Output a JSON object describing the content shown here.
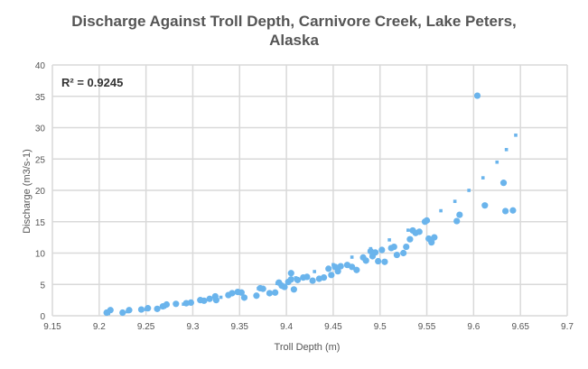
{
  "chart_data": {
    "type": "scatter",
    "title_lines": [
      "Discharge Against Troll Depth, Carnivore Creek, Lake Peters,",
      "Alaska"
    ],
    "xlabel": "Troll Depth (m)",
    "ylabel": "Discharge (m3/s-1)",
    "xlim": [
      9.15,
      9.7
    ],
    "ylim": [
      0,
      40
    ],
    "x_ticks": [
      "9.15",
      "9.2",
      "9.25",
      "9.3",
      "9.35",
      "9.4",
      "9.45",
      "9.5",
      "9.55",
      "9.6",
      "9.65",
      "9.7"
    ],
    "y_ticks": [
      "0",
      "5",
      "10",
      "15",
      "20",
      "25",
      "30",
      "35",
      "40"
    ],
    "grid": true,
    "annotation": "R² = 0.9245",
    "marker_color": "#6ab4ec",
    "trend_color": "#6ab4ec",
    "series": [
      {
        "points": [
          [
            9.208,
            0.5
          ],
          [
            9.212,
            0.9
          ],
          [
            9.225,
            0.5
          ],
          [
            9.232,
            0.9
          ],
          [
            9.245,
            1.0
          ],
          [
            9.252,
            1.2
          ],
          [
            9.262,
            1.1
          ],
          [
            9.268,
            1.5
          ],
          [
            9.272,
            1.8
          ],
          [
            9.282,
            1.9
          ],
          [
            9.293,
            2.0
          ],
          [
            9.298,
            2.1
          ],
          [
            9.308,
            2.5
          ],
          [
            9.312,
            2.4
          ],
          [
            9.318,
            2.7
          ],
          [
            9.324,
            3.1
          ],
          [
            9.325,
            2.5
          ],
          [
            9.338,
            3.3
          ],
          [
            9.342,
            3.6
          ],
          [
            9.348,
            3.8
          ],
          [
            9.352,
            3.7
          ],
          [
            9.355,
            2.9
          ],
          [
            9.368,
            3.2
          ],
          [
            9.372,
            4.4
          ],
          [
            9.375,
            4.3
          ],
          [
            9.382,
            3.6
          ],
          [
            9.388,
            3.7
          ],
          [
            9.392,
            5.3
          ],
          [
            9.395,
            4.8
          ],
          [
            9.398,
            4.6
          ],
          [
            9.402,
            5.4
          ],
          [
            9.405,
            6.8
          ],
          [
            9.405,
            5.8
          ],
          [
            9.408,
            4.2
          ],
          [
            9.412,
            5.7
          ],
          [
            9.418,
            6.1
          ],
          [
            9.422,
            6.2
          ],
          [
            9.428,
            5.6
          ],
          [
            9.435,
            5.9
          ],
          [
            9.44,
            6.1
          ],
          [
            9.445,
            7.5
          ],
          [
            9.448,
            6.5
          ],
          [
            9.452,
            7.8
          ],
          [
            9.455,
            7.1
          ],
          [
            9.458,
            7.9
          ],
          [
            9.465,
            8.1
          ],
          [
            9.47,
            7.8
          ],
          [
            9.475,
            7.3
          ],
          [
            9.482,
            9.3
          ],
          [
            9.485,
            8.8
          ],
          [
            9.49,
            10.3
          ],
          [
            9.492,
            9.5
          ],
          [
            9.495,
            10.1
          ],
          [
            9.498,
            8.7
          ],
          [
            9.502,
            10.5
          ],
          [
            9.505,
            8.6
          ],
          [
            9.512,
            10.8
          ],
          [
            9.515,
            11.0
          ],
          [
            9.518,
            9.7
          ],
          [
            9.525,
            10.0
          ],
          [
            9.528,
            11.0
          ],
          [
            9.532,
            12.2
          ],
          [
            9.535,
            13.6
          ],
          [
            9.538,
            13.2
          ],
          [
            9.542,
            13.4
          ],
          [
            9.548,
            15.0
          ],
          [
            9.55,
            15.2
          ],
          [
            9.552,
            12.3
          ],
          [
            9.555,
            11.7
          ],
          [
            9.558,
            12.5
          ],
          [
            9.582,
            15.1
          ],
          [
            9.585,
            16.1
          ],
          [
            9.604,
            35.1
          ],
          [
            9.612,
            17.6
          ],
          [
            9.632,
            21.2
          ],
          [
            9.634,
            16.7
          ],
          [
            9.642,
            16.8
          ]
        ]
      }
    ],
    "trendline": [
      [
        9.21,
        0.35
      ],
      [
        9.23,
        0.65
      ],
      [
        9.25,
        1.0
      ],
      [
        9.27,
        1.4
      ],
      [
        9.29,
        1.85
      ],
      [
        9.31,
        2.35
      ],
      [
        9.33,
        2.95
      ],
      [
        9.35,
        3.6
      ],
      [
        9.37,
        4.35
      ],
      [
        9.39,
        5.15
      ],
      [
        9.41,
        6.05
      ],
      [
        9.43,
        7.05
      ],
      [
        9.45,
        8.15
      ],
      [
        9.47,
        9.35
      ],
      [
        9.49,
        10.7
      ],
      [
        9.51,
        12.1
      ],
      [
        9.53,
        13.65
      ],
      [
        9.55,
        15.3
      ],
      [
        9.565,
        16.75
      ],
      [
        9.58,
        18.25
      ],
      [
        9.595,
        20.0
      ],
      [
        9.61,
        22.0
      ],
      [
        9.625,
        24.5
      ],
      [
        9.635,
        26.5
      ],
      [
        9.645,
        28.8
      ]
    ]
  }
}
